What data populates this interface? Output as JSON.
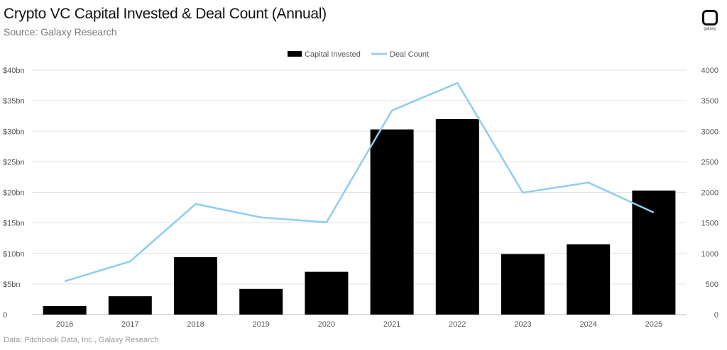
{
  "header": {
    "title": "Crypto VC Capital Invested & Deal Count (Annual)",
    "subtitle": "Source: Galaxy Research",
    "logo_text": "galaxy"
  },
  "footer": {
    "note": "Data: Pitchbook Data, Inc., Galaxy Research"
  },
  "chart_data": {
    "type": "bar",
    "title": "Crypto VC Capital Invested & Deal Count (Annual)",
    "categories": [
      "2016",
      "2017",
      "2018",
      "2019",
      "2020",
      "2021",
      "2022",
      "2023",
      "2024",
      "2025"
    ],
    "series": [
      {
        "name": "Capital Invested",
        "type": "bar",
        "axis": "left",
        "color": "#000000",
        "values": [
          1.4,
          3.0,
          9.4,
          4.2,
          7.0,
          30.3,
          32.0,
          9.9,
          11.5,
          20.3
        ]
      },
      {
        "name": "Deal Count",
        "type": "line",
        "axis": "right",
        "color": "#8ecdf0",
        "values": [
          545,
          870,
          1810,
          1590,
          1510,
          3340,
          3790,
          1995,
          2160,
          1670
        ]
      }
    ],
    "ylim": [
      0,
      40
    ],
    "y2lim": [
      0,
      4000
    ],
    "yticks": [
      "0",
      "$5bn",
      "$10bn",
      "$15bn",
      "$20bn",
      "$25bn",
      "$30bn",
      "$35bn",
      "$40bn"
    ],
    "y2ticks": [
      "0",
      "500",
      "1000",
      "1500",
      "2000",
      "2500",
      "3000",
      "3500",
      "4000"
    ],
    "grid": true,
    "legend": "top-center"
  }
}
